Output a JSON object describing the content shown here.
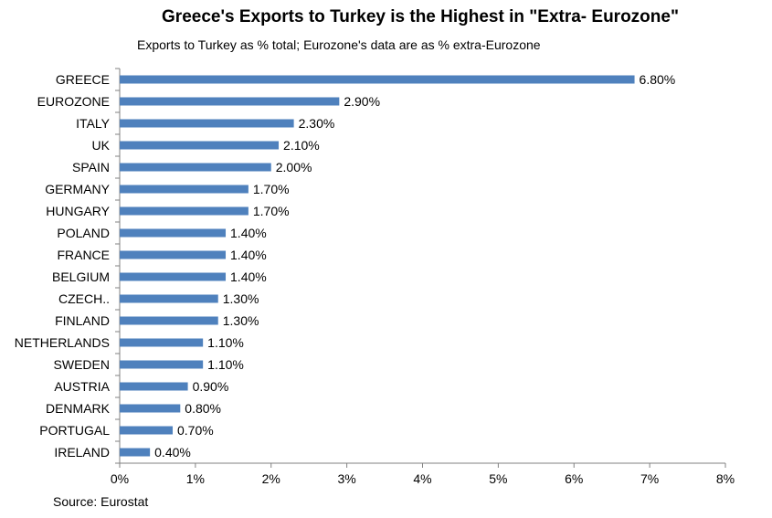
{
  "chart_data": {
    "type": "bar",
    "orientation": "horizontal",
    "title": "Greece's Exports to Turkey is the Highest in \"Extra- Eurozone\"",
    "subtitle": "Exports to Turkey as % total; Eurozone's data are as % extra-Eurozone",
    "source": "Source: Eurostat",
    "categories": [
      "GREECE",
      "EUROZONE",
      "ITALY",
      "UK",
      "SPAIN",
      "GERMANY",
      "HUNGARY",
      "POLAND",
      "FRANCE",
      "BELGIUM",
      "CZECH..",
      "FINLAND",
      "NETHERLANDS",
      "SWEDEN",
      "AUSTRIA",
      "DENMARK",
      "PORTUGAL",
      "IRELAND"
    ],
    "values": [
      6.8,
      2.9,
      2.3,
      2.1,
      2.0,
      1.7,
      1.7,
      1.4,
      1.4,
      1.4,
      1.3,
      1.3,
      1.1,
      1.1,
      0.9,
      0.8,
      0.7,
      0.4
    ],
    "data_labels": [
      "6.80%",
      "2.90%",
      "2.30%",
      "2.10%",
      "2.00%",
      "1.70%",
      "1.70%",
      "1.40%",
      "1.40%",
      "1.40%",
      "1.30%",
      "1.30%",
      "1.10%",
      "1.10%",
      "0.90%",
      "0.80%",
      "0.70%",
      "0.40%"
    ],
    "x_ticks": [
      "0%",
      "1%",
      "2%",
      "3%",
      "4%",
      "5%",
      "6%",
      "7%",
      "8%"
    ],
    "xlim": [
      0,
      8
    ],
    "xlabel": "",
    "ylabel": "",
    "grid": false,
    "legend": "none",
    "bar_color": "#4f81bd"
  }
}
